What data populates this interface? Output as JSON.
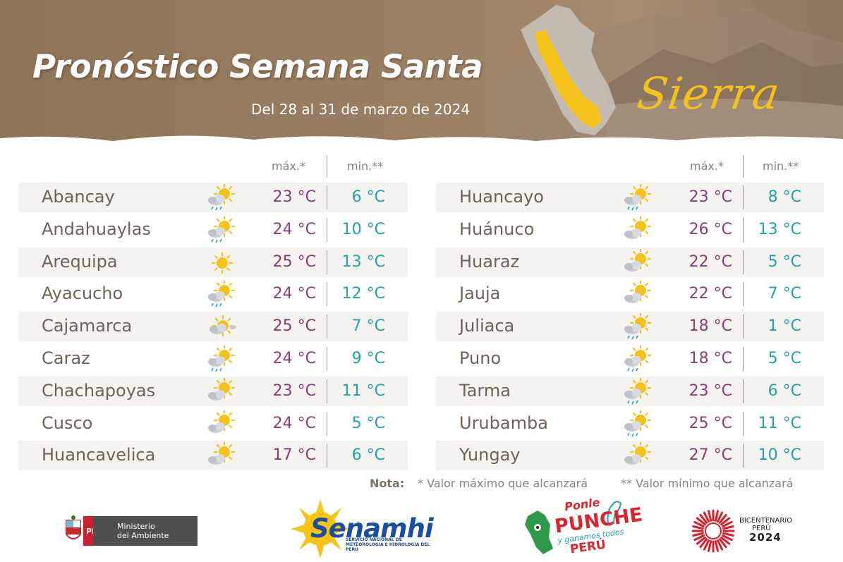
{
  "header": {
    "title": "Pronóstico Semana Santa",
    "subtitle": "Del 28 al 31 de marzo de 2024",
    "region": "Sierra"
  },
  "columns": {
    "max": "máx.*",
    "min": "min.**"
  },
  "left_table": [
    {
      "city": "Abancay",
      "icon": "sun-cloud-rain-icon",
      "max": "23 °C",
      "min": "6 °C"
    },
    {
      "city": "Andahuaylas",
      "icon": "sun-cloud-rain-icon",
      "max": "24 °C",
      "min": "10 °C"
    },
    {
      "city": "Arequipa",
      "icon": "sun-icon",
      "max": "25 °C",
      "min": "13 °C"
    },
    {
      "city": "Ayacucho",
      "icon": "sun-cloud-rain-icon",
      "max": "24 °C",
      "min": "12 °C"
    },
    {
      "city": "Cajamarca",
      "icon": "sun-clouds-icon",
      "max": "25 °C",
      "min": "7 °C"
    },
    {
      "city": "Caraz",
      "icon": "sun-cloud-rain-icon",
      "max": "24 °C",
      "min": "9 °C"
    },
    {
      "city": "Chachapoyas",
      "icon": "sun-cloud-icon",
      "max": "23 °C",
      "min": "11 °C"
    },
    {
      "city": "Cusco",
      "icon": "sun-cloud-icon",
      "max": "24 °C",
      "min": "5 °C"
    },
    {
      "city": "Huancavelica",
      "icon": "sun-cloud-icon",
      "max": "17 °C",
      "min": "6 °C"
    }
  ],
  "right_table": [
    {
      "city": "Huancayo",
      "icon": "sun-cloud-rain-icon",
      "max": "23 °C",
      "min": "8 °C"
    },
    {
      "city": "Huánuco",
      "icon": "sun-cloud-icon",
      "max": "26 °C",
      "min": "13 °C"
    },
    {
      "city": "Huaraz",
      "icon": "sun-cloud-icon",
      "max": "22 °C",
      "min": "5 °C"
    },
    {
      "city": "Jauja",
      "icon": "sun-cloud-icon",
      "max": "22 °C",
      "min": "7 °C"
    },
    {
      "city": "Juliaca",
      "icon": "sun-cloud-rain-icon",
      "max": "18 °C",
      "min": "1 °C"
    },
    {
      "city": "Puno",
      "icon": "sun-cloud-rain-icon",
      "max": "18 °C",
      "min": "5 °C"
    },
    {
      "city": "Tarma",
      "icon": "sun-cloud-rain-icon",
      "max": "23 °C",
      "min": "6 °C"
    },
    {
      "city": "Urubamba",
      "icon": "sun-cloud-rain-icon",
      "max": "25 °C",
      "min": "11 °C"
    },
    {
      "city": "Yungay",
      "icon": "sun-cloud-icon",
      "max": "27 °C",
      "min": "10 °C"
    }
  ],
  "note": {
    "label": "Nota:",
    "max_note": "* Valor máximo que alcanzará",
    "min_note": "** Valor mínimo que alcanzará"
  },
  "logos": {
    "minam_peru": "PERÚ",
    "minam_line1": "Ministerio",
    "minam_line2": "del Ambiente",
    "senamhi": "Senamhi",
    "senamhi_sub": "SERVICIO NACIONAL DE METEOROLOGÍA E HIDROLOGÍA DEL PERÚ",
    "punche_1": "Ponle",
    "punche_2": "PUNCHE",
    "punche_3": "y ganamos todos",
    "punche_4": "PERÚ",
    "bicentenario_1": "BICENTENARIO",
    "bicentenario_2": "PERÚ",
    "bicentenario_3": "2024"
  },
  "colors": {
    "banner": "#9c8164",
    "max_temp": "#8c3d78",
    "min_temp": "#1fa4ab",
    "region": "#f3c21a"
  }
}
